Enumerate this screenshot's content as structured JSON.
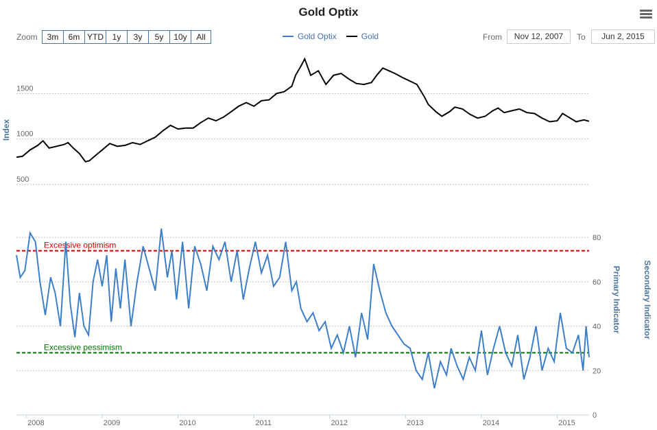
{
  "title": "Gold Optix",
  "zoom": {
    "label": "Zoom",
    "buttons": [
      "3m",
      "6m",
      "YTD",
      "1y",
      "3y",
      "5y",
      "10y",
      "All"
    ]
  },
  "legend": [
    {
      "name": "Gold Optix",
      "color": "#3d7fc7"
    },
    {
      "name": "Gold",
      "color": "#000000"
    }
  ],
  "range": {
    "from_label": "From",
    "from_value": "Nov 12, 2007",
    "to_label": "To",
    "to_value": "Jun 2, 2015"
  },
  "menu_icon": "hamburger-menu-icon",
  "chart_data": [
    {
      "type": "line",
      "series_name": "Gold",
      "color": "#000000",
      "ylabel": "Index",
      "ylim": [
        500,
        2000
      ],
      "yticks": [
        500,
        1000,
        1500
      ],
      "xlim": [
        2007.87,
        2015.42
      ],
      "x": [
        2007.87,
        2007.95,
        2008.05,
        2008.15,
        2008.22,
        2008.3,
        2008.4,
        2008.5,
        2008.55,
        2008.62,
        2008.7,
        2008.78,
        2008.83,
        2008.9,
        2009.0,
        2009.1,
        2009.2,
        2009.3,
        2009.4,
        2009.5,
        2009.6,
        2009.7,
        2009.8,
        2009.9,
        2010.0,
        2010.1,
        2010.2,
        2010.3,
        2010.4,
        2010.5,
        2010.6,
        2010.7,
        2010.8,
        2010.9,
        2011.0,
        2011.1,
        2011.2,
        2011.3,
        2011.4,
        2011.5,
        2011.55,
        2011.62,
        2011.67,
        2011.75,
        2011.85,
        2011.95,
        2012.05,
        2012.15,
        2012.25,
        2012.35,
        2012.45,
        2012.55,
        2012.62,
        2012.7,
        2012.78,
        2012.86,
        2012.95,
        2013.05,
        2013.15,
        2013.25,
        2013.3,
        2013.4,
        2013.48,
        2013.58,
        2013.65,
        2013.75,
        2013.85,
        2013.95,
        2014.05,
        2014.15,
        2014.22,
        2014.3,
        2014.4,
        2014.5,
        2014.6,
        2014.7,
        2014.8,
        2014.9,
        2015.0,
        2015.07,
        2015.15,
        2015.25,
        2015.35,
        2015.42
      ],
      "y": [
        800,
        810,
        880,
        930,
        980,
        900,
        920,
        940,
        960,
        900,
        840,
        750,
        760,
        810,
        880,
        950,
        920,
        930,
        960,
        940,
        980,
        1020,
        1090,
        1150,
        1110,
        1120,
        1120,
        1180,
        1230,
        1200,
        1240,
        1300,
        1360,
        1400,
        1360,
        1420,
        1430,
        1500,
        1520,
        1580,
        1700,
        1800,
        1880,
        1700,
        1750,
        1600,
        1700,
        1720,
        1660,
        1610,
        1600,
        1620,
        1700,
        1780,
        1750,
        1720,
        1680,
        1640,
        1600,
        1460,
        1380,
        1300,
        1250,
        1300,
        1350,
        1330,
        1270,
        1230,
        1250,
        1310,
        1340,
        1290,
        1310,
        1330,
        1290,
        1280,
        1230,
        1190,
        1200,
        1280,
        1240,
        1190,
        1210,
        1195
      ]
    },
    {
      "type": "line",
      "series_name": "Gold Optix",
      "color": "#3d7fc7",
      "ylabel": "Primary Indicator",
      "secondary_ylabel": "Secondary Indicator",
      "ylim": [
        0,
        85
      ],
      "yticks": [
        0,
        20,
        40,
        60,
        80
      ],
      "xlim": [
        2007.87,
        2015.42
      ],
      "xticks": [
        "2008",
        "2009",
        "2010",
        "2011",
        "2012",
        "2013",
        "2014",
        "2015"
      ],
      "x": [
        2007.87,
        2007.92,
        2007.98,
        2008.05,
        2008.12,
        2008.18,
        2008.25,
        2008.32,
        2008.38,
        2008.45,
        2008.52,
        2008.58,
        2008.64,
        2008.7,
        2008.76,
        2008.82,
        2008.88,
        2008.94,
        2009.0,
        2009.06,
        2009.12,
        2009.18,
        2009.24,
        2009.3,
        2009.38,
        2009.46,
        2009.54,
        2009.62,
        2009.7,
        2009.78,
        2009.86,
        2009.92,
        2009.98,
        2010.06,
        2010.14,
        2010.22,
        2010.3,
        2010.38,
        2010.46,
        2010.54,
        2010.62,
        2010.7,
        2010.78,
        2010.86,
        2010.94,
        2011.02,
        2011.1,
        2011.18,
        2011.26,
        2011.34,
        2011.42,
        2011.5,
        2011.56,
        2011.62,
        2011.7,
        2011.78,
        2011.86,
        2011.94,
        2012.02,
        2012.1,
        2012.18,
        2012.26,
        2012.34,
        2012.42,
        2012.5,
        2012.58,
        2012.66,
        2012.74,
        2012.82,
        2012.9,
        2012.98,
        2013.06,
        2013.14,
        2013.22,
        2013.3,
        2013.38,
        2013.46,
        2013.54,
        2013.6,
        2013.68,
        2013.76,
        2013.84,
        2013.92,
        2014.0,
        2014.08,
        2014.16,
        2014.24,
        2014.32,
        2014.4,
        2014.48,
        2014.56,
        2014.64,
        2014.72,
        2014.8,
        2014.88,
        2014.96,
        2015.04,
        2015.12,
        2015.2,
        2015.28,
        2015.34,
        2015.38,
        2015.42
      ],
      "y": [
        72,
        62,
        65,
        82,
        78,
        60,
        45,
        62,
        55,
        40,
        78,
        50,
        35,
        55,
        40,
        36,
        60,
        70,
        58,
        72,
        42,
        66,
        48,
        70,
        40,
        60,
        76,
        66,
        56,
        84,
        62,
        74,
        52,
        78,
        48,
        76,
        68,
        56,
        76,
        70,
        78,
        60,
        74,
        52,
        66,
        78,
        64,
        72,
        58,
        62,
        78,
        56,
        60,
        48,
        42,
        46,
        38,
        42,
        30,
        36,
        28,
        40,
        26,
        46,
        34,
        68,
        56,
        46,
        40,
        36,
        32,
        30,
        20,
        16,
        28,
        12,
        24,
        18,
        30,
        22,
        16,
        26,
        20,
        38,
        18,
        30,
        40,
        28,
        22,
        36,
        16,
        26,
        40,
        20,
        30,
        24,
        46,
        30,
        28,
        36,
        20,
        40,
        26
      ]
    }
  ],
  "annotations": [
    {
      "label": "Excessive optimism",
      "value": 74,
      "color": "#cc0000"
    },
    {
      "label": "Excessive pessimism",
      "value": 28,
      "color": "#007700"
    }
  ]
}
